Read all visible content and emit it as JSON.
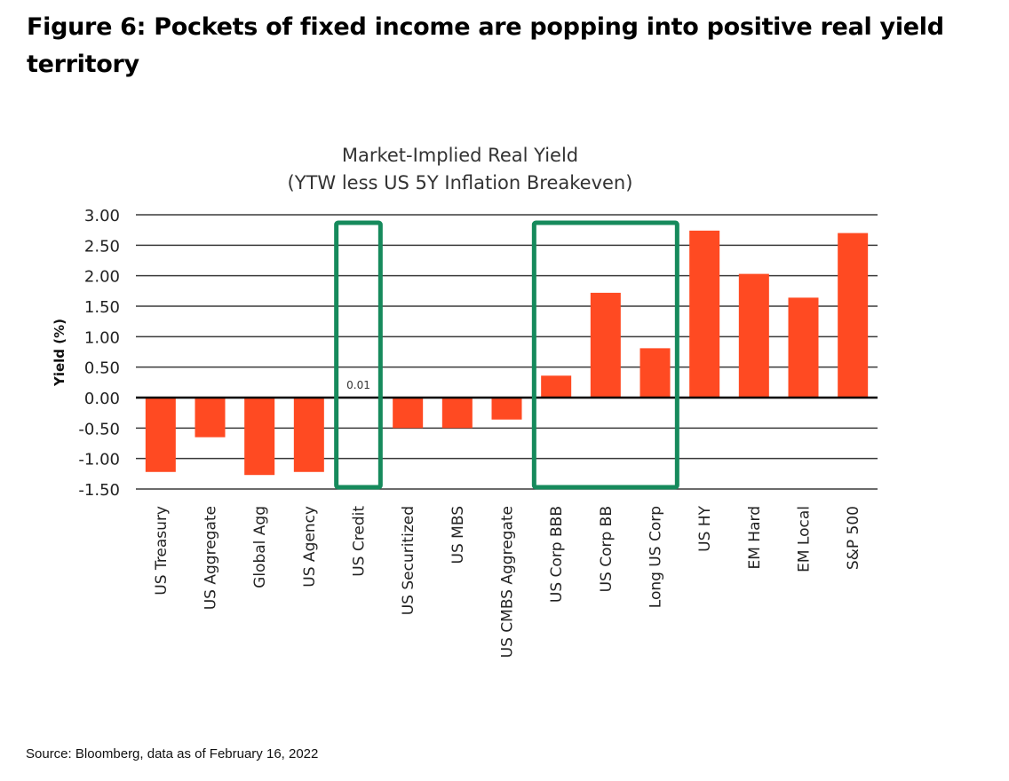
{
  "figure": {
    "title": "Figure 6: Pockets of fixed income are popping into positive real yield territory",
    "source": "Source: Bloomberg, data as of February 16, 2022"
  },
  "chart_data": {
    "type": "bar",
    "title": "Market-Implied Real Yield",
    "subtitle": "(YTW less US 5Y Inflation Breakeven)",
    "xlabel": "",
    "ylabel": "Yield (%)",
    "ylim": [
      -1.5,
      3.0
    ],
    "yticks": [
      "3.00",
      "2.50",
      "2.00",
      "1.50",
      "1.00",
      "0.50",
      "0.00",
      "-0.50",
      "-1.00",
      "-1.50"
    ],
    "ytick_values": [
      3.0,
      2.5,
      2.0,
      1.5,
      1.0,
      0.5,
      0.0,
      -0.5,
      -1.0,
      -1.5
    ],
    "grid": true,
    "bar_color": "#FF4A22",
    "highlight_color": "#168A5C",
    "categories": [
      "US Treasury",
      "US Aggregate",
      "Global Agg",
      "US Agency",
      "US Credit",
      "US Securitized",
      "US MBS",
      "US CMBS Aggregate",
      "US Corp BBB",
      "US Corp BB",
      "Long US Corp",
      "US HY",
      "EM Hard",
      "EM Local",
      "S&P 500"
    ],
    "values": [
      -1.22,
      -0.65,
      -1.27,
      -1.22,
      0.01,
      -0.5,
      -0.5,
      -0.36,
      0.36,
      1.72,
      0.81,
      2.74,
      2.03,
      1.64,
      2.7
    ],
    "data_labels": [
      {
        "category": "US Credit",
        "text": "0.01"
      }
    ],
    "highlight_groups": [
      {
        "categories": [
          "US Credit"
        ]
      },
      {
        "categories": [
          "US Corp BBB",
          "US Corp BB",
          "Long US Corp"
        ]
      }
    ]
  }
}
